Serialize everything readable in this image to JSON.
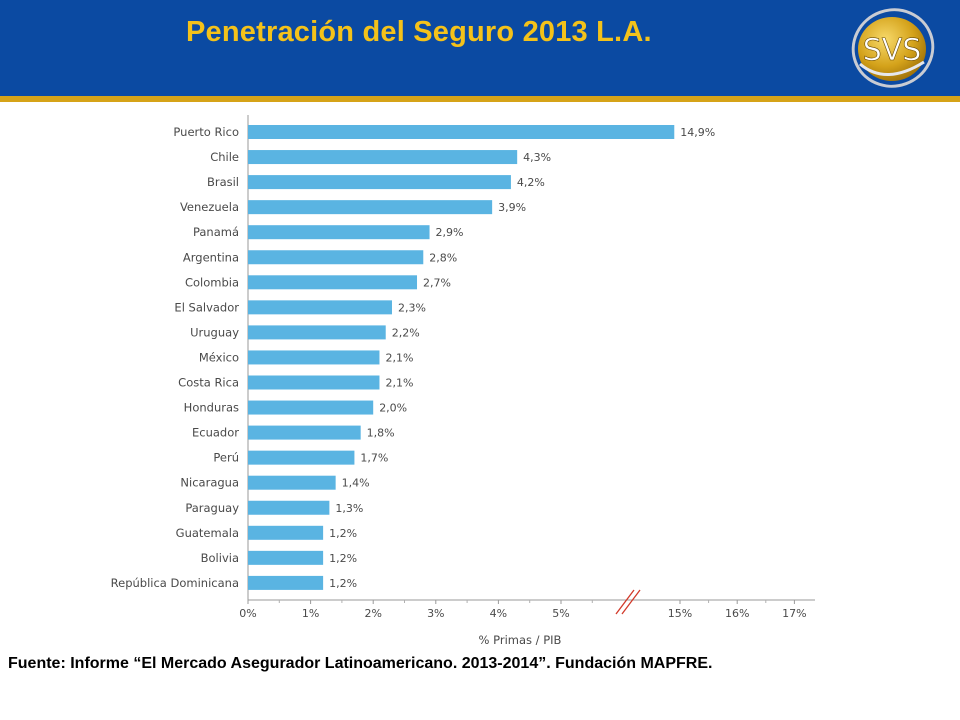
{
  "header": {
    "title": "Penetración del Seguro 2013 L.A."
  },
  "logo": {
    "text": "SVS"
  },
  "source": {
    "text": "Fuente: Informe “El Mercado Asegurador Latinoamericano. 2013-2014”. Fundación MAPFRE."
  },
  "colors": {
    "header_bg": "#0b4aa2",
    "accent": "#d6a318",
    "title": "#f4c21a",
    "bar": "#5ab4e2"
  },
  "chart_data": {
    "type": "bar",
    "orientation": "horizontal",
    "categories": [
      "Puerto Rico",
      "Chile",
      "Brasil",
      "Venezuela",
      "Panamá",
      "Argentina",
      "Colombia",
      "El Salvador",
      "Uruguay",
      "México",
      "Costa Rica",
      "Honduras",
      "Ecuador",
      "Perú",
      "Nicaragua",
      "Paraguay",
      "Guatemala",
      "Bolivia",
      "República Dominicana"
    ],
    "values": [
      14.9,
      4.3,
      4.2,
      3.9,
      2.9,
      2.8,
      2.7,
      2.3,
      2.2,
      2.1,
      2.1,
      2.0,
      1.8,
      1.7,
      1.4,
      1.3,
      1.2,
      1.2,
      1.2
    ],
    "value_labels": [
      "14,9%",
      "4,3%",
      "4,2%",
      "3,9%",
      "2,9%",
      "2,8%",
      "2,7%",
      "2,3%",
      "2,2%",
      "2,1%",
      "2,1%",
      "2,0%",
      "1,8%",
      "1,7%",
      "1,4%",
      "1,3%",
      "1,2%",
      "1,2%",
      "1,2%"
    ],
    "xlabel": "% Primas / PIB",
    "x_ticks": [
      0,
      1,
      2,
      3,
      4,
      5,
      15,
      16,
      17
    ],
    "x_tick_labels": [
      "0%",
      "1%",
      "2%",
      "3%",
      "4%",
      "5%",
      "15%",
      "16%",
      "17%"
    ],
    "axis_break": [
      5.5,
      14.5
    ],
    "xlim": [
      0,
      17.3
    ],
    "grid": false
  }
}
